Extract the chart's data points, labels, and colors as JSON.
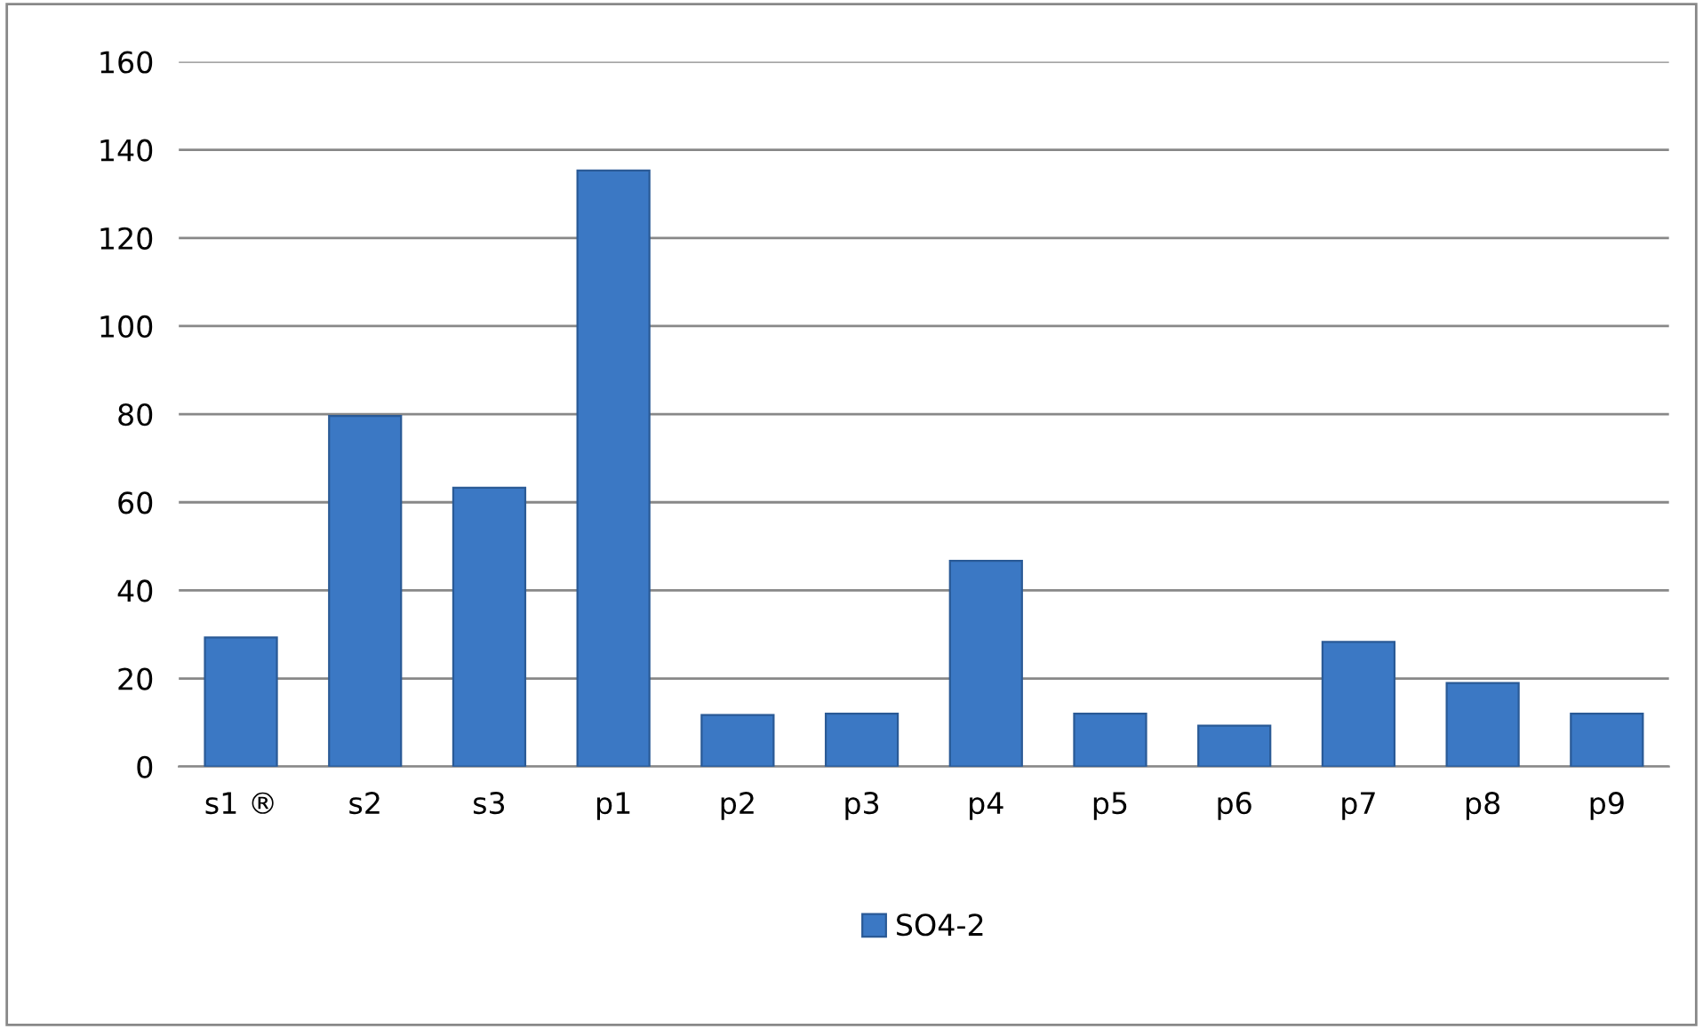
{
  "chart_data": {
    "type": "bar",
    "categories": [
      "s1 ®",
      "s2",
      "s3",
      "p1",
      "p2",
      "p3",
      "p4",
      "p5",
      "p6",
      "p7",
      "p8",
      "p9"
    ],
    "series": [
      {
        "name": "SO4-2",
        "color": "#3b78c4",
        "values": [
          29.3,
          79.6,
          63.3,
          135.3,
          11.7,
          12,
          46.7,
          12,
          9.3,
          28.3,
          19,
          12
        ]
      }
    ],
    "ylim": [
      0,
      160
    ],
    "yticks": [
      0,
      20,
      40,
      60,
      80,
      100,
      120,
      140,
      160
    ],
    "grid": "y",
    "legend": "bottom"
  }
}
